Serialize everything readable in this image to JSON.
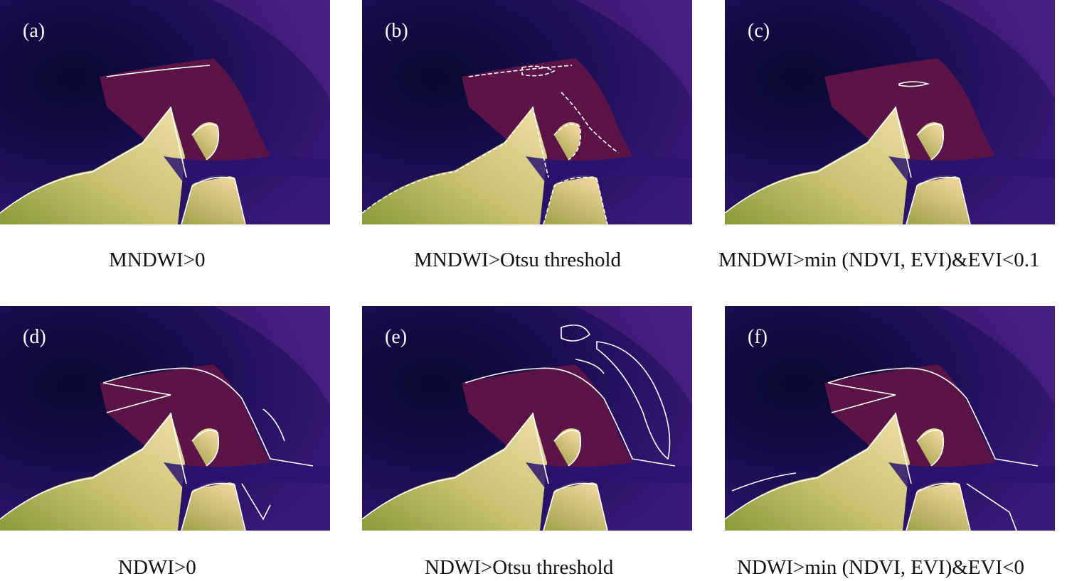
{
  "panels": [
    {
      "label": "(a)",
      "caption": "MNDWI>0"
    },
    {
      "label": "(b)",
      "caption": "MNDWI>Otsu threshold"
    },
    {
      "label": "(c)",
      "caption": "MNDWI>min (NDVI, EVI)&EVI<0.1"
    },
    {
      "label": "(d)",
      "caption": "NDWI>0"
    },
    {
      "label": "(e)",
      "caption": "NDWI>Otsu threshold"
    },
    {
      "label": "(f)",
      "caption": "NDWI>min (NDVI, EVI)&EVI<0"
    }
  ],
  "colors": {
    "deep_water": "#120a40",
    "water": "#2a1470",
    "tidal_flat": "#5a1448",
    "land_light": "#e6d79a",
    "land_green": "#9aa245",
    "outline": "#ffffff"
  }
}
